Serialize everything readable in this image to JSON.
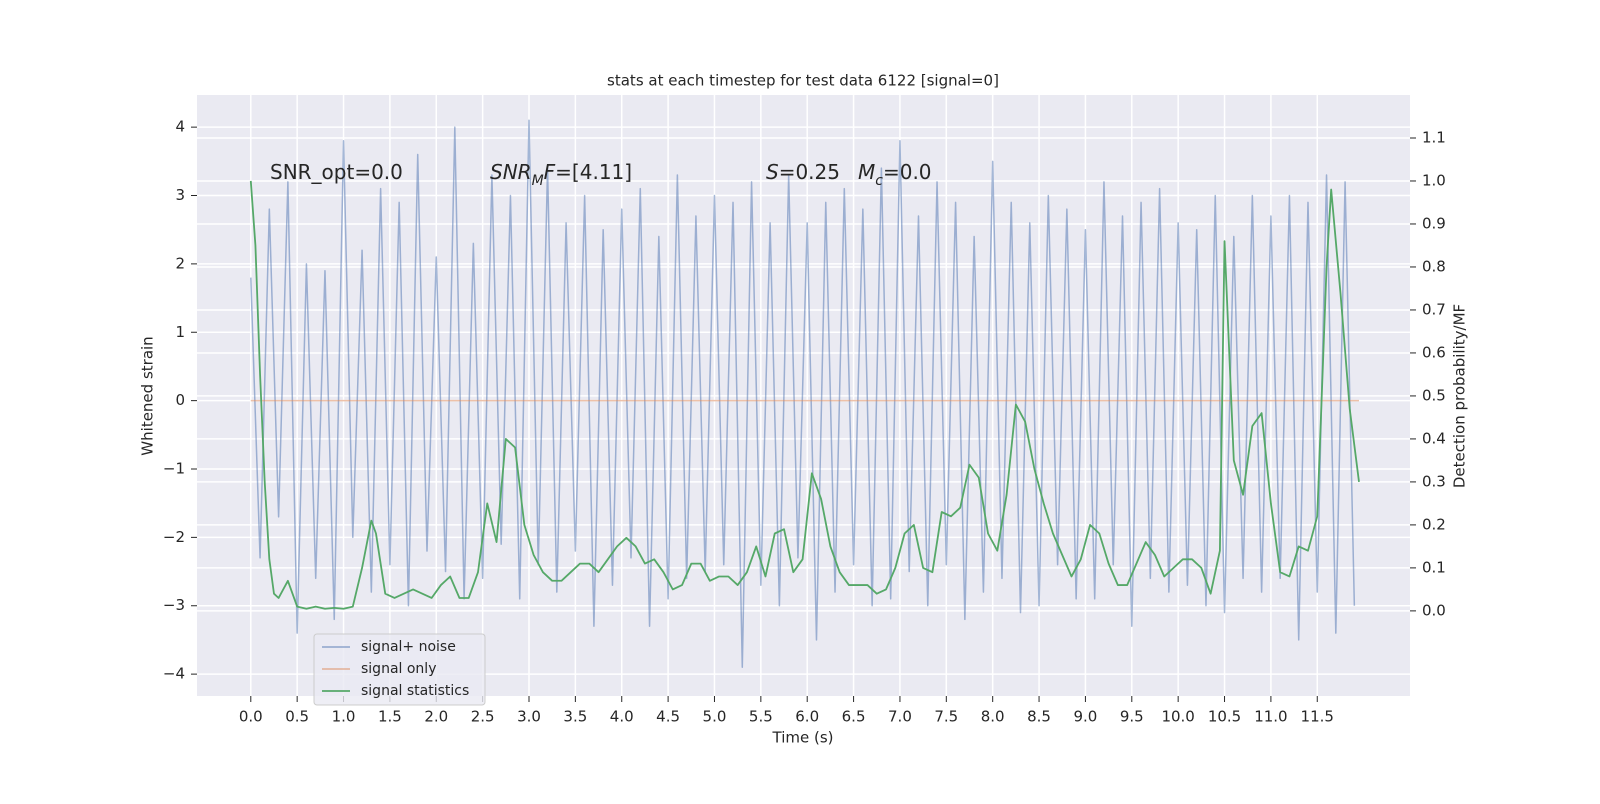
{
  "chart_data": {
    "type": "line",
    "title": "stats at each timestep for test data 6122 [signal=0]",
    "x_label": "Time (s)",
    "y_label": "Whitened strain",
    "y2_label": "Detection probability/MF",
    "grid": true,
    "legend_loc": "lower left",
    "xlim": [
      -0.58,
      12.5
    ],
    "ylim": [
      -4.32,
      4.47
    ],
    "y2lim": [
      -0.198,
      1.2
    ],
    "xticks": [
      {
        "value": 0,
        "label": "0.0"
      },
      0.5,
      {
        "value": 1,
        "label": "1.0"
      },
      1.5,
      {
        "value": 2,
        "label": "2.0"
      },
      2.5,
      {
        "value": 3,
        "label": "3.0"
      },
      3.5,
      {
        "value": 4,
        "label": "4.0"
      },
      4.5,
      {
        "value": 5,
        "label": "5.0"
      },
      5.5,
      {
        "value": 6,
        "label": "6.0"
      },
      6.5,
      {
        "value": 7,
        "label": "7.0"
      },
      7.5,
      {
        "value": 8,
        "label": "8.0"
      },
      8.5,
      {
        "value": 9,
        "label": "9.0"
      },
      9.5,
      {
        "value": 10,
        "label": "10.0"
      },
      10.5,
      {
        "value": 11,
        "label": "11.0"
      },
      11.5
    ],
    "yticks": [
      {
        "value": -4,
        "label": "−4"
      },
      {
        "value": -3,
        "label": "−3"
      },
      {
        "value": -2,
        "label": "−2"
      },
      {
        "value": -1,
        "label": "−1"
      },
      0,
      1,
      2,
      3,
      4
    ],
    "y2ticks": [
      {
        "value": 0,
        "label": "0.0"
      },
      0.1,
      0.2,
      0.3,
      0.4,
      0.5,
      0.6,
      0.7,
      0.8,
      0.9,
      {
        "value": 1,
        "label": "1.0"
      },
      1.1
    ],
    "annotations": [
      [
        {
          "text": "SNR_opt=0.0"
        }
      ],
      [
        {
          "text": "SNR",
          "italic": true
        },
        {
          "text": "M",
          "italic": true,
          "sub": true
        },
        {
          "text": "F",
          "italic": true
        },
        {
          "text": "=[4.11]"
        }
      ],
      [
        {
          "text": "S",
          "italic": true
        },
        {
          "text": "=0.25"
        }
      ],
      [
        {
          "text": "M",
          "italic": true
        },
        {
          "text": "c",
          "italic": true,
          "sub": true
        },
        {
          "text": "=0.0"
        }
      ]
    ],
    "series": [
      {
        "name": "signal+ noise",
        "color": "#4c72b0",
        "opacity": 0.5,
        "x": [
          0.0,
          0.1,
          0.2,
          0.3,
          0.4,
          0.5,
          0.6,
          0.7,
          0.8,
          0.9,
          1.0,
          1.1,
          1.2,
          1.3,
          1.4,
          1.5,
          1.6,
          1.7,
          1.8,
          1.9,
          2.0,
          2.1,
          2.2,
          2.3,
          2.4,
          2.5,
          2.6,
          2.7,
          2.8,
          2.9,
          3.0,
          3.1,
          3.2,
          3.3,
          3.4,
          3.5,
          3.6,
          3.7,
          3.8,
          3.9,
          4.0,
          4.1,
          4.2,
          4.3,
          4.4,
          4.5,
          4.6,
          4.7,
          4.8,
          4.9,
          5.0,
          5.1,
          5.2,
          5.3,
          5.4,
          5.5,
          5.6,
          5.7,
          5.8,
          5.9,
          6.0,
          6.1,
          6.2,
          6.3,
          6.4,
          6.5,
          6.6,
          6.7,
          6.8,
          6.9,
          7.0,
          7.1,
          7.2,
          7.3,
          7.4,
          7.5,
          7.6,
          7.7,
          7.8,
          7.9,
          8.0,
          8.1,
          8.2,
          8.3,
          8.4,
          8.5,
          8.6,
          8.7,
          8.8,
          8.9,
          9.0,
          9.1,
          9.2,
          9.3,
          9.4,
          9.5,
          9.6,
          9.7,
          9.8,
          9.9,
          10.0,
          10.1,
          10.2,
          10.3,
          10.4,
          10.5,
          10.6,
          10.7,
          10.8,
          10.9,
          11.0,
          11.1,
          11.2,
          11.3,
          11.4,
          11.5,
          11.6,
          11.7,
          11.8,
          11.9
        ],
        "values": [
          1.8,
          -2.3,
          2.8,
          -1.7,
          3.2,
          -3.4,
          2.0,
          -2.6,
          1.9,
          -3.2,
          3.8,
          -2.0,
          2.2,
          -2.8,
          3.1,
          -2.4,
          2.9,
          -3.0,
          3.6,
          -2.2,
          2.1,
          -2.5,
          4.0,
          -2.9,
          2.3,
          -2.6,
          3.3,
          -2.1,
          3.0,
          -2.9,
          4.1,
          -2.4,
          3.4,
          -2.8,
          2.6,
          -2.2,
          3.0,
          -3.3,
          2.5,
          -2.7,
          2.8,
          -2.3,
          3.1,
          -3.3,
          2.4,
          -2.9,
          3.3,
          -2.6,
          2.7,
          -2.5,
          3.0,
          -2.4,
          2.9,
          -3.9,
          3.2,
          -2.7,
          2.6,
          -3.0,
          3.3,
          -2.3,
          2.6,
          -3.5,
          2.9,
          -2.8,
          3.1,
          -2.4,
          2.8,
          -3.0,
          3.4,
          -2.9,
          3.8,
          -2.5,
          2.7,
          -3.0,
          3.2,
          -2.4,
          2.9,
          -3.2,
          2.4,
          -2.8,
          3.5,
          -2.6,
          2.9,
          -3.1,
          2.6,
          -3.0,
          3.0,
          -2.4,
          2.8,
          -2.9,
          2.5,
          -2.9,
          3.2,
          -2.4,
          2.7,
          -3.3,
          2.9,
          -2.6,
          3.1,
          -2.8,
          2.6,
          -2.7,
          2.5,
          -3.0,
          3.0,
          -3.1,
          2.4,
          -2.6,
          3.0,
          -2.8,
          2.7,
          -2.6,
          3.0,
          -3.5,
          2.9,
          -2.8,
          3.3,
          -3.4,
          3.2,
          -3.0
        ]
      },
      {
        "name": "signal only",
        "color": "#dd8452",
        "opacity": 0.5,
        "x": [
          0.0,
          11.95
        ],
        "values": [
          0,
          0
        ]
      },
      {
        "name": "signal statistics",
        "color": "#55a868",
        "opacity": 1,
        "axis": "y2",
        "x": [
          0,
          0.05,
          0.1,
          0.15,
          0.2,
          0.25,
          0.3,
          0.4,
          0.5,
          0.6,
          0.7,
          0.8,
          0.9,
          1.0,
          1.1,
          1.2,
          1.3,
          1.35,
          1.45,
          1.55,
          1.65,
          1.75,
          1.85,
          1.95,
          2.05,
          2.15,
          2.25,
          2.35,
          2.45,
          2.55,
          2.65,
          2.75,
          2.85,
          2.95,
          3.05,
          3.15,
          3.25,
          3.35,
          3.45,
          3.55,
          3.65,
          3.75,
          3.85,
          3.95,
          4.05,
          4.15,
          4.25,
          4.35,
          4.45,
          4.55,
          4.65,
          4.75,
          4.85,
          4.95,
          5.05,
          5.15,
          5.25,
          5.35,
          5.45,
          5.55,
          5.65,
          5.75,
          5.85,
          5.95,
          6.05,
          6.15,
          6.25,
          6.35,
          6.45,
          6.55,
          6.65,
          6.75,
          6.85,
          6.95,
          7.05,
          7.15,
          7.25,
          7.35,
          7.45,
          7.55,
          7.65,
          7.75,
          7.85,
          7.95,
          8.05,
          8.15,
          8.25,
          8.35,
          8.45,
          8.55,
          8.65,
          8.75,
          8.85,
          8.95,
          9.05,
          9.15,
          9.25,
          9.35,
          9.45,
          9.55,
          9.65,
          9.75,
          9.85,
          9.95,
          10.05,
          10.15,
          10.25,
          10.35,
          10.45,
          10.5,
          10.6,
          10.7,
          10.8,
          10.9,
          11.0,
          11.1,
          11.2,
          11.3,
          11.4,
          11.5,
          11.6,
          11.65,
          11.75,
          11.85,
          11.95
        ],
        "values": [
          1.0,
          0.85,
          0.55,
          0.3,
          0.12,
          0.04,
          0.03,
          0.07,
          0.01,
          0.005,
          0.01,
          0.005,
          0.007,
          0.005,
          0.01,
          0.1,
          0.21,
          0.18,
          0.04,
          0.03,
          0.04,
          0.05,
          0.04,
          0.03,
          0.06,
          0.08,
          0.03,
          0.03,
          0.09,
          0.25,
          0.16,
          0.4,
          0.38,
          0.2,
          0.13,
          0.09,
          0.07,
          0.07,
          0.09,
          0.11,
          0.11,
          0.09,
          0.12,
          0.15,
          0.17,
          0.15,
          0.11,
          0.12,
          0.09,
          0.05,
          0.06,
          0.11,
          0.11,
          0.07,
          0.08,
          0.08,
          0.06,
          0.09,
          0.15,
          0.08,
          0.18,
          0.19,
          0.09,
          0.12,
          0.32,
          0.26,
          0.15,
          0.09,
          0.06,
          0.06,
          0.06,
          0.04,
          0.05,
          0.1,
          0.18,
          0.2,
          0.1,
          0.09,
          0.23,
          0.22,
          0.24,
          0.34,
          0.31,
          0.18,
          0.14,
          0.27,
          0.48,
          0.44,
          0.33,
          0.25,
          0.18,
          0.13,
          0.08,
          0.12,
          0.2,
          0.18,
          0.11,
          0.06,
          0.06,
          0.11,
          0.16,
          0.13,
          0.08,
          0.1,
          0.12,
          0.12,
          0.1,
          0.04,
          0.14,
          0.86,
          0.35,
          0.27,
          0.43,
          0.46,
          0.25,
          0.09,
          0.08,
          0.15,
          0.14,
          0.22,
          0.8,
          0.98,
          0.74,
          0.47,
          0.3
        ]
      }
    ]
  }
}
